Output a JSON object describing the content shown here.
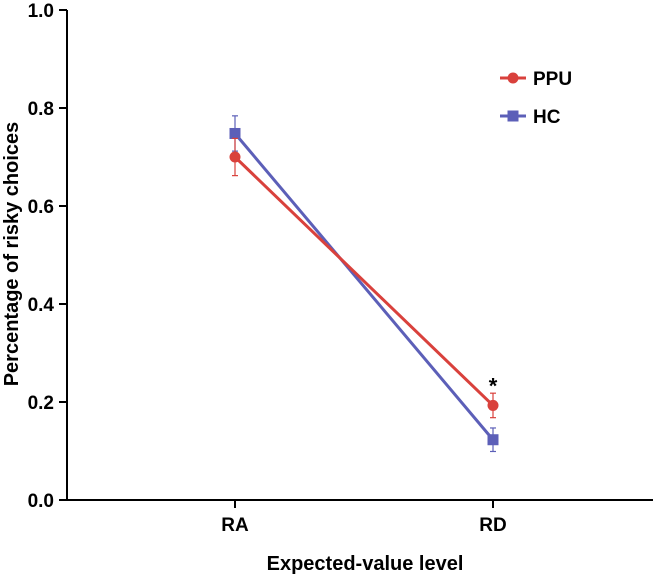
{
  "chart_data": {
    "type": "line",
    "categories": [
      "RA",
      "RD"
    ],
    "xlabel": "Expected-value level",
    "ylabel": "Percentage of risky choices",
    "ylim": [
      0,
      1.0
    ],
    "yticks": [
      "0.0",
      "0.2",
      "0.4",
      "0.6",
      "0.8",
      "1.0"
    ],
    "grid": false,
    "legend_position": "top-right",
    "series": [
      {
        "name": "PPU",
        "color": "#d9413c",
        "marker": "circle",
        "values": [
          0.7,
          0.193
        ],
        "errors": [
          0.038,
          0.025
        ]
      },
      {
        "name": "HC",
        "color": "#5c5fb8",
        "marker": "square",
        "values": [
          0.748,
          0.123
        ],
        "errors": [
          0.036,
          0.024
        ]
      }
    ],
    "annotations": [
      {
        "text": "*",
        "category": "RD",
        "y": 0.25
      }
    ]
  }
}
